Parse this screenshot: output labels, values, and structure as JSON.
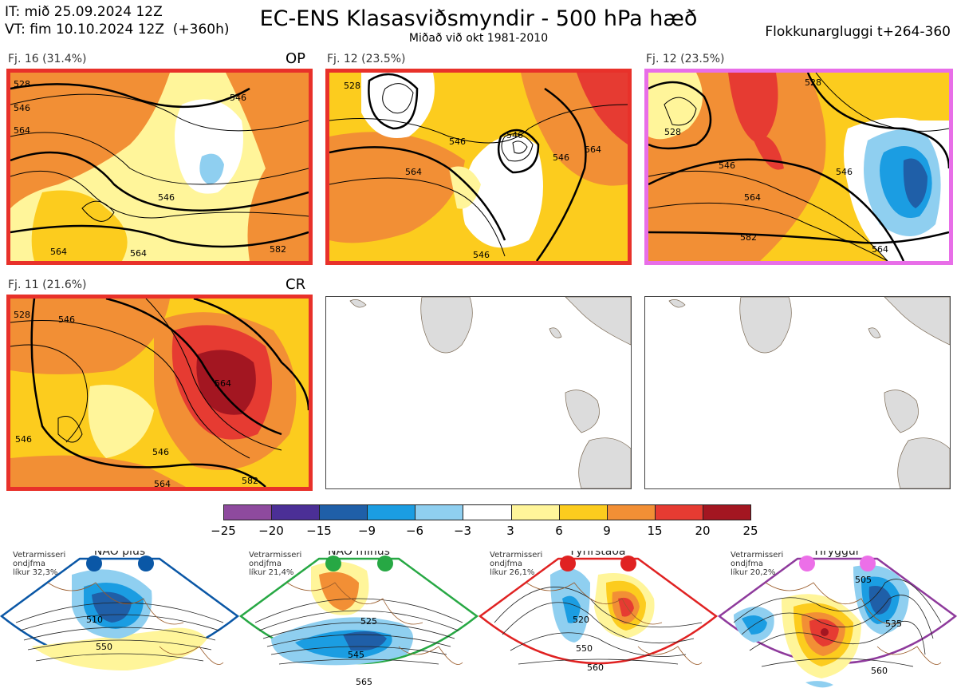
{
  "header": {
    "it_line": "IT: mið 25.09.2024 12Z",
    "vt_line": "VT: fim 10.10.2024 12Z  (+360h)",
    "title": "EC-ENS Klasasviðsmyndir - 500 hPa hæð",
    "subtitle": "Miðað við okt 1981-2010",
    "window": "Flokkunargluggi t+264-360"
  },
  "panels": [
    {
      "label": "Fj. 16 (31.4%)",
      "tag": "OP",
      "border": "#e8312a",
      "contours": [
        "528",
        "546",
        "564",
        "546",
        "546",
        "564",
        "564",
        "582"
      ]
    },
    {
      "label": "Fj. 12 (23.5%)",
      "tag": "",
      "border": "#e8312a",
      "contours": [
        "528",
        "546",
        "546",
        "564",
        "546",
        "564",
        "546"
      ]
    },
    {
      "label": "Fj. 12 (23.5%)",
      "tag": "",
      "border": "#e86ee8",
      "contours": [
        "528",
        "546",
        "546",
        "564",
        "582",
        "564",
        "528"
      ]
    },
    {
      "label": "Fj. 11 (21.6%)",
      "tag": "CR",
      "border": "#e8312a",
      "contours": [
        "528",
        "546",
        "546",
        "564",
        "546",
        "564",
        "582"
      ]
    }
  ],
  "colorbar": {
    "colors": [
      "#8e4a9e",
      "#4b2f96",
      "#1f5fa8",
      "#1b9de2",
      "#8fcff0",
      "#ffffff",
      "#fff59a",
      "#fccc1e",
      "#f28f35",
      "#e63b32",
      "#a31621"
    ],
    "ticks": [
      "−25",
      "−20",
      "−15",
      "−9",
      "−6",
      "−3",
      "3",
      "6",
      "9",
      "15",
      "20",
      "25"
    ]
  },
  "regimes": [
    {
      "name": "NAO plús",
      "info1": "Vetrarmisseri",
      "info2": "ondjfma",
      "info3": "líkur 32,3%",
      "dot": "#0a57a6",
      "frame": "#0a57a6",
      "c1": "510",
      "c2": "550"
    },
    {
      "name": "NAO mínus",
      "info1": "Vetrarmisseri",
      "info2": "ondjfma",
      "info3": "líkur 21,4%",
      "dot": "#27a844",
      "frame": "#27a844",
      "c1": "525",
      "c2": "545",
      "c3": "565"
    },
    {
      "name": "Fyrirstaða",
      "info1": "Vetrarmisseri",
      "info2": "ondjfma",
      "info3": "líkur 26,1%",
      "dot": "#e02222",
      "frame": "#e02222",
      "c1": "520",
      "c2": "550",
      "c3": "560"
    },
    {
      "name": "Hryggur",
      "info1": "Vetrarmisseri",
      "info2": "ondjfma",
      "info3": "líkur 20,2%",
      "dot": "#ec6fe8",
      "frame": "#8e3a9c",
      "c1": "505",
      "c2": "535",
      "c3": "560"
    }
  ]
}
